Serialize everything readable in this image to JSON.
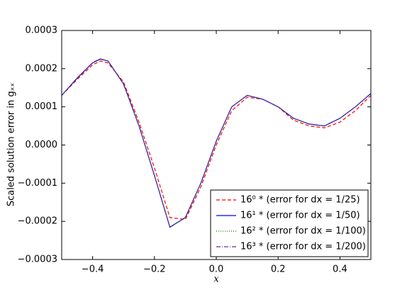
{
  "chart_data": {
    "type": "line",
    "xlabel": "x",
    "ylabel": "Scaled solution error in gₓₓ",
    "x": [
      -0.5,
      -0.45,
      -0.4,
      -0.375,
      -0.35,
      -0.3,
      -0.25,
      -0.2,
      -0.15,
      -0.1,
      -0.05,
      0,
      0.05,
      0.1,
      0.15,
      0.2,
      0.25,
      0.3,
      0.35,
      0.4,
      0.45,
      0.5
    ],
    "series": [
      {
        "name": "16⁰ * (error for dx = 1/25)",
        "color": "#ff0000",
        "linestyle": "dashed",
        "values": [
          0.00013,
          0.000172,
          0.00021,
          0.00022,
          0.000215,
          0.000165,
          6e-05,
          -6e-05,
          -0.00019,
          -0.000195,
          -0.00011,
          0.0,
          9e-05,
          0.000125,
          0.00012,
          0.0001,
          6.5e-05,
          5e-05,
          4.5e-05,
          6e-05,
          9e-05,
          0.00013
        ]
      },
      {
        "name": "16¹ * (error for dx = 1/50)",
        "color": "#0000ff",
        "linestyle": "solid",
        "values": [
          0.00013,
          0.000175,
          0.000215,
          0.000225,
          0.00022,
          0.00016,
          5e-05,
          -8e-05,
          -0.000215,
          -0.00019,
          -0.0001,
          1e-05,
          0.0001,
          0.00013,
          0.00012,
          0.0001,
          7e-05,
          5.5e-05,
          5e-05,
          7e-05,
          0.0001,
          0.000135
        ]
      },
      {
        "name": "16² * (error for dx = 1/100)",
        "color": "#008000",
        "linestyle": "dotted",
        "values": [
          0.00013,
          0.000176,
          0.000216,
          0.000226,
          0.00022,
          0.00016,
          5e-05,
          -8e-05,
          -0.000216,
          -0.00019,
          -0.0001,
          1e-05,
          0.0001,
          0.00013,
          0.00012,
          0.0001,
          7e-05,
          5.5e-05,
          5e-05,
          7e-05,
          0.0001,
          0.000135
        ]
      },
      {
        "name": "16³ * (error for dx = 1/200)",
        "color": "#6a2c91",
        "linestyle": "dashdot",
        "values": [
          0.00013,
          0.000176,
          0.000216,
          0.000226,
          0.00022,
          0.00016,
          5e-05,
          -8e-05,
          -0.000216,
          -0.00019,
          -0.0001,
          1e-05,
          0.0001,
          0.00013,
          0.00012,
          0.0001,
          7e-05,
          5.5e-05,
          5e-05,
          7e-05,
          0.0001,
          0.000135
        ]
      }
    ],
    "xlim": [
      -0.5,
      0.5
    ],
    "ylim": [
      -0.0003,
      0.0003
    ],
    "xticks": [
      {
        "value": -0.4,
        "label": "−0.4"
      },
      {
        "value": -0.2,
        "label": "−0.2"
      },
      {
        "value": 0,
        "label": "0.0"
      },
      0.2,
      0.4
    ],
    "yticks": [
      {
        "value": -0.0003,
        "label": "−0.0003"
      },
      {
        "value": -0.0002,
        "label": "−0.0002"
      },
      {
        "value": -0.0001,
        "label": "−0.0001"
      },
      {
        "value": 0,
        "label": "0.0000"
      },
      0.0001,
      0.0002,
      0.0003
    ],
    "legend": "lower right"
  }
}
